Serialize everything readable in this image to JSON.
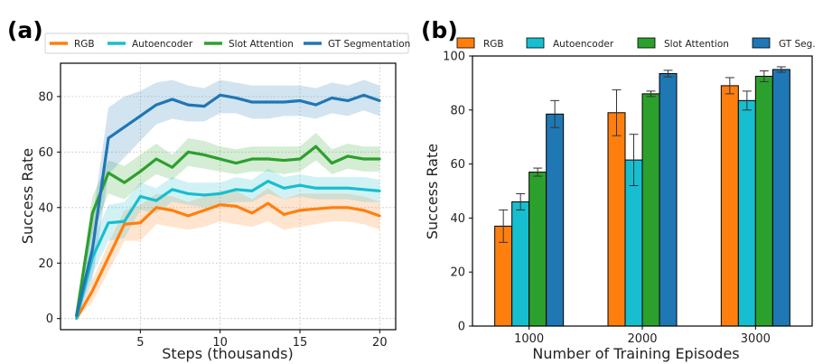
{
  "colors": {
    "RGB": "#ff7f0e",
    "Autoencoder": "#17becf",
    "Slot Attention": "#2ca02c",
    "GT": "#1f77b4"
  },
  "chart_data": [
    {
      "panel": "(a)",
      "type": "line",
      "xlabel": "Steps (thousands)",
      "ylabel": "Success Rate",
      "xlim": [
        0,
        21
      ],
      "ylim": [
        -4,
        92
      ],
      "xticks": [
        5,
        10,
        15,
        20
      ],
      "yticks": [
        0,
        20,
        40,
        60,
        80
      ],
      "grid": true,
      "legend": "top, outside plot",
      "x": [
        1,
        2,
        3,
        4,
        5,
        6,
        7,
        8,
        9,
        10,
        11,
        12,
        13,
        14,
        15,
        16,
        17,
        18,
        19,
        20
      ],
      "series": [
        {
          "name": "RGB",
          "color_key": "RGB",
          "values": [
            0,
            10,
            22,
            34,
            34.5,
            40,
            39,
            37,
            39,
            41,
            40.5,
            38,
            41.5,
            37.5,
            39,
            39.5,
            40,
            40,
            39,
            37
          ],
          "lower": [
            0,
            6,
            17,
            28,
            28,
            34,
            33,
            32,
            33,
            35,
            34,
            33,
            35,
            32,
            33,
            34,
            35,
            35,
            34,
            32
          ],
          "upper": [
            1,
            14,
            27,
            39,
            41,
            45,
            44,
            42,
            44,
            46,
            46,
            43,
            47,
            43,
            45,
            45,
            45,
            45,
            44,
            42
          ]
        },
        {
          "name": "Autoencoder",
          "color_key": "Autoencoder",
          "values": [
            0,
            22,
            34.5,
            35,
            44,
            42.5,
            46.5,
            45,
            44.5,
            45,
            46.5,
            46,
            49.5,
            47,
            48,
            47,
            47,
            47,
            46.5,
            46
          ],
          "lower": [
            0,
            16,
            28,
            29,
            39,
            38,
            42,
            41,
            40,
            41,
            42,
            42,
            45,
            43,
            44,
            43,
            43,
            43,
            42,
            42
          ],
          "upper": [
            2,
            28,
            41,
            42,
            49,
            47,
            51,
            49,
            49,
            49,
            51,
            50,
            54,
            51,
            52,
            51,
            51,
            51,
            51,
            50
          ]
        },
        {
          "name": "Slot Attention",
          "color_key": "Slot Attention",
          "values": [
            1,
            38,
            52.5,
            49,
            53,
            57.5,
            54.5,
            60,
            59,
            57.5,
            56,
            57.5,
            57.5,
            57,
            57.5,
            62,
            56,
            58.5,
            57.5,
            57.5
          ],
          "lower": [
            0,
            30,
            45,
            43,
            48,
            52,
            50,
            55,
            54,
            53,
            52,
            53,
            53,
            52,
            53,
            57,
            52,
            54,
            53,
            53
          ],
          "upper": [
            3,
            44,
            57,
            55,
            59,
            63,
            59,
            65,
            64,
            62,
            61,
            62,
            62,
            62,
            62,
            67,
            61,
            63,
            62,
            62
          ]
        },
        {
          "name": "GT Segmentation",
          "color_key": "GT",
          "values": [
            1,
            25,
            65,
            69,
            73,
            77,
            79,
            77,
            76.5,
            80.5,
            79.5,
            78,
            78,
            78,
            78.5,
            77,
            79.5,
            78.5,
            80.5,
            78.5
          ],
          "lower": [
            0,
            14,
            52,
            58,
            64,
            70,
            72,
            71,
            71,
            74,
            74,
            72,
            72,
            73,
            73,
            72,
            74,
            73,
            75,
            73
          ],
          "upper": [
            3,
            36,
            76,
            80,
            82,
            85,
            86,
            84,
            83,
            86,
            85,
            84,
            84,
            84,
            84,
            83,
            85,
            84,
            86,
            84
          ]
        }
      ]
    },
    {
      "panel": "(b)",
      "type": "bar",
      "xlabel": "Number of Training Episodes",
      "ylabel": "Success Rate",
      "ylim": [
        0,
        100
      ],
      "yticks": [
        0,
        20,
        40,
        60,
        80,
        100
      ],
      "grid": false,
      "legend": "top, outside plot",
      "categories": [
        "1000",
        "2000",
        "3000"
      ],
      "series": [
        {
          "name": "RGB",
          "color_key": "RGB",
          "values": [
            37,
            79,
            89
          ],
          "err": [
            6,
            8.5,
            3
          ]
        },
        {
          "name": "Autoencoder",
          "color_key": "Autoencoder",
          "values": [
            46,
            61.5,
            83.5
          ],
          "err": [
            3,
            9.5,
            3.5
          ]
        },
        {
          "name": "Slot Attention",
          "color_key": "Slot Attention",
          "values": [
            57,
            86,
            92.5
          ],
          "err": [
            1.5,
            1,
            2
          ]
        },
        {
          "name": "GT Seg.",
          "color_key": "GT",
          "values": [
            78.5,
            93.5,
            95
          ],
          "err": [
            5,
            1.2,
            1
          ]
        }
      ]
    }
  ]
}
